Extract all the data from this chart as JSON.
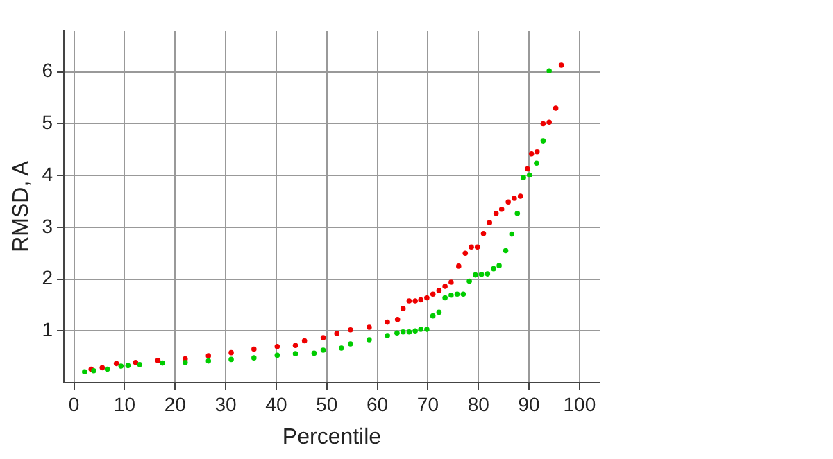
{
  "chart_data": {
    "type": "scatter",
    "xlabel": "Percentile",
    "ylabel": "RMSD, A",
    "marker": "circle",
    "grid": true,
    "xlim": [
      -2,
      104
    ],
    "ylim": [
      0,
      6.8
    ],
    "xticks": [
      0,
      10,
      20,
      30,
      40,
      50,
      60,
      70,
      80,
      90,
      100
    ],
    "yticks": [
      1,
      2,
      3,
      4,
      5,
      6
    ],
    "series": [
      {
        "color": "#00cc00",
        "x": [
          2.1,
          3.9,
          6.6,
          9.3,
          10.7,
          13,
          17.5,
          22,
          26.6,
          31.1,
          35.6,
          40.2,
          43.8,
          47.5,
          49.3,
          52.9,
          54.7,
          58.4,
          62,
          63.9,
          65.1,
          66.3,
          67.5,
          68.6,
          69.8,
          71,
          72.2,
          73.4,
          74.6,
          75.8,
          77,
          78.2,
          79.4,
          80.6,
          81.8,
          83,
          84.1,
          85.4,
          86.6,
          87.7,
          88.9,
          90.1,
          91.5,
          92.8,
          94
        ],
        "values": [
          0.21,
          0.23,
          0.26,
          0.32,
          0.33,
          0.35,
          0.38,
          0.39,
          0.42,
          0.45,
          0.48,
          0.53,
          0.56,
          0.57,
          0.63,
          0.67,
          0.75,
          0.83,
          0.91,
          0.96,
          0.98,
          0.98,
          1.0,
          1.03,
          1.03,
          1.29,
          1.36,
          1.64,
          1.69,
          1.71,
          1.71,
          1.96,
          2.08,
          2.09,
          2.1,
          2.2,
          2.26,
          2.55,
          2.87,
          3.27,
          3.96,
          4.01,
          4.24,
          4.67,
          6.02
        ]
      },
      {
        "color": "#ee0000",
        "x": [
          3.4,
          5.6,
          8.4,
          12.2,
          16.6,
          22,
          26.6,
          31.1,
          35.6,
          40.2,
          43.8,
          45.6,
          49.3,
          52,
          54.7,
          58.4,
          62,
          64,
          65.1,
          66.3,
          67.5,
          68.6,
          69.8,
          71,
          72.2,
          73.4,
          74.6,
          76.1,
          77.4,
          78.6,
          79.8,
          81,
          82.2,
          83.5,
          84.6,
          85.9,
          87.1,
          88.3,
          89.7,
          90.5,
          91.6,
          92.8,
          94,
          95.3,
          96.4
        ],
        "values": [
          0.26,
          0.29,
          0.37,
          0.39,
          0.43,
          0.46,
          0.52,
          0.58,
          0.65,
          0.7,
          0.72,
          0.81,
          0.87,
          0.95,
          1.02,
          1.07,
          1.17,
          1.22,
          1.43,
          1.58,
          1.58,
          1.6,
          1.64,
          1.71,
          1.78,
          1.86,
          1.94,
          2.25,
          2.5,
          2.62,
          2.62,
          2.88,
          3.09,
          3.27,
          3.35,
          3.49,
          3.56,
          3.6,
          4.13,
          4.42,
          4.46,
          5.0,
          5.03,
          5.3,
          6.13
        ]
      }
    ]
  }
}
